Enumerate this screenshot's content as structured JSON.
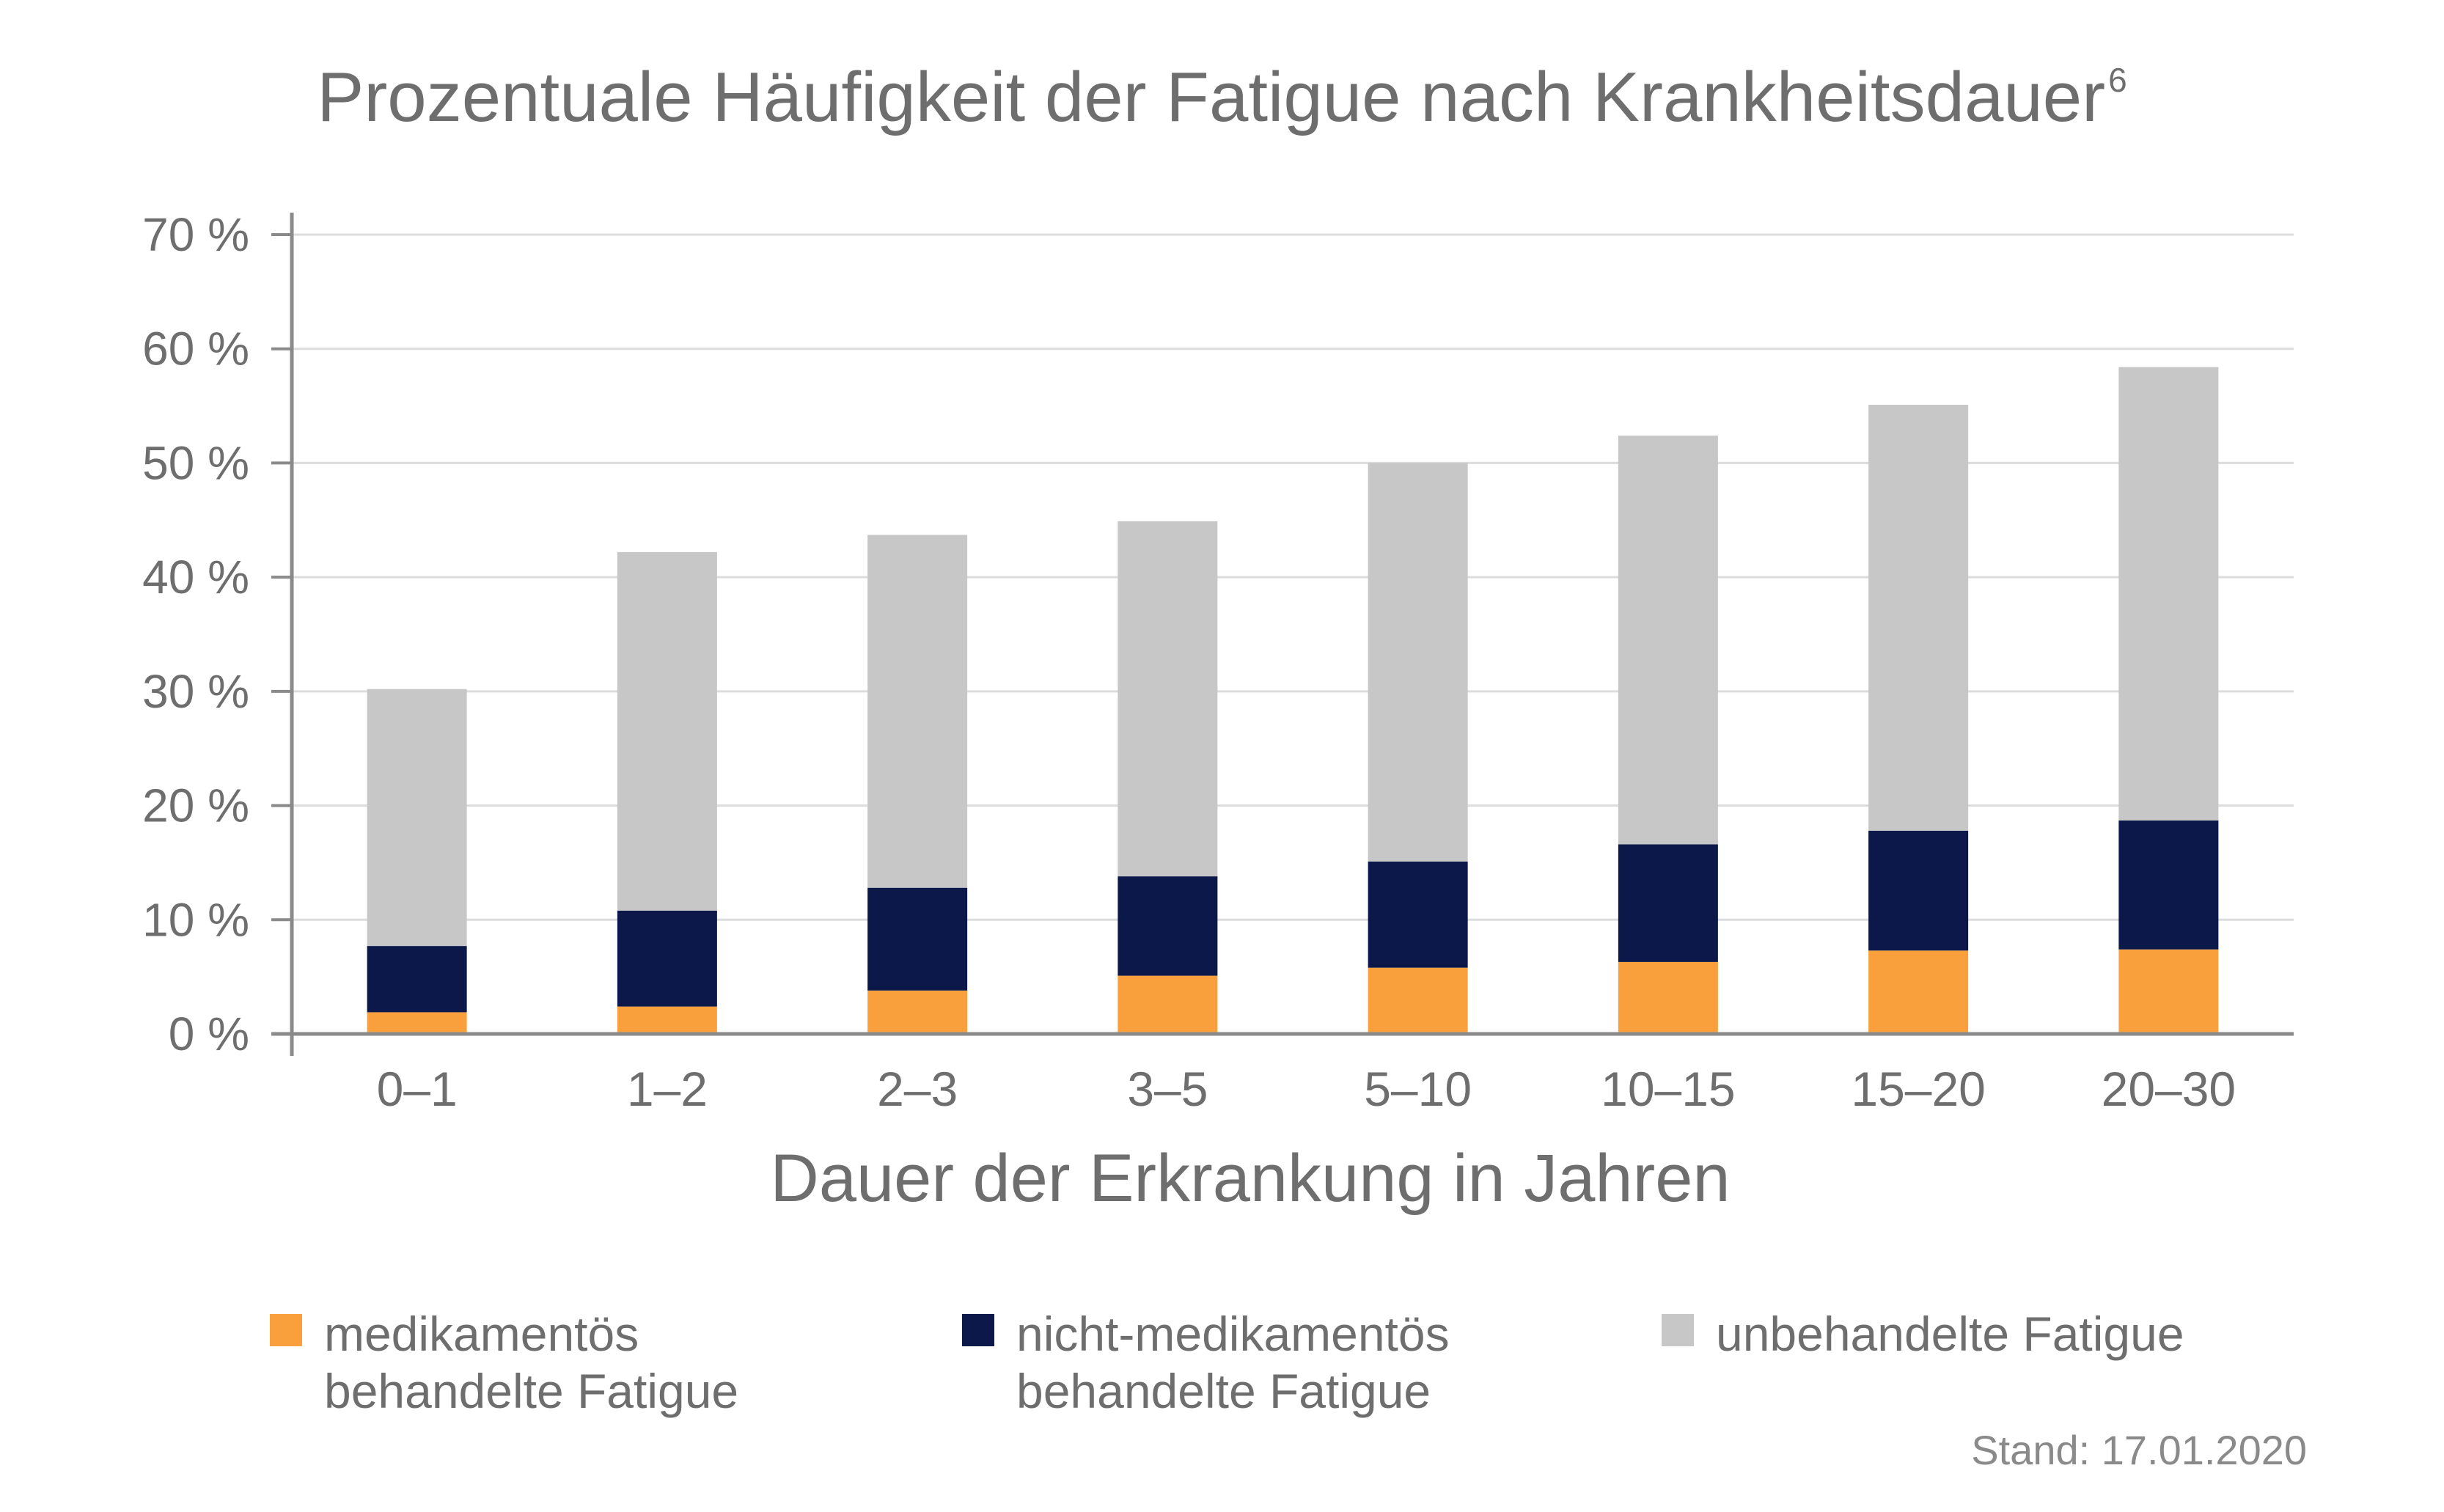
{
  "title": "Prozentuale Häufigkeit der Fatigue nach Krankheitsdauer",
  "title_superscript": "6",
  "stand": "Stand: 17.01.2020",
  "colors": {
    "medikamentoes": "#F9A03C",
    "nicht_medikamentoes": "#0B1849",
    "unbehandelt": "#C7C7C7",
    "axis": "#8a8a8a",
    "grid": "#dcdcdc",
    "text": "#6e6e6e"
  },
  "chart_data": {
    "type": "bar",
    "stacked": true,
    "title": "Prozentuale Häufigkeit der Fatigue nach Krankheitsdauer",
    "xlabel": "Dauer der Erkrankung in Jahren",
    "ylabel": "",
    "ylim": [
      0,
      70
    ],
    "yticks": [
      "0 %",
      "10 %",
      "20 %",
      "30 %",
      "40 %",
      "50 %",
      "60 %",
      "70 %"
    ],
    "grid": true,
    "legend_position": "bottom",
    "categories": [
      "0–1",
      "1–2",
      "2–3",
      "3–5",
      "5–10",
      "10–15",
      "15–20",
      "20–30"
    ],
    "series": [
      {
        "name": "medikamentös\nbehandelte Fatigue",
        "color": "#F9A03C",
        "values": [
          1.9,
          2.4,
          3.8,
          5.1,
          5.8,
          6.3,
          7.3,
          7.4
        ]
      },
      {
        "name": "nicht-medikamentös\nbehandelte Fatigue",
        "color": "#0B1849",
        "values": [
          5.8,
          8.4,
          9.0,
          8.7,
          9.3,
          10.3,
          10.5,
          11.3
        ]
      },
      {
        "name": "unbehandelte Fatigue",
        "color": "#C7C7C7",
        "values": [
          22.5,
          31.4,
          30.9,
          31.1,
          34.9,
          35.8,
          37.3,
          39.7
        ]
      }
    ]
  }
}
